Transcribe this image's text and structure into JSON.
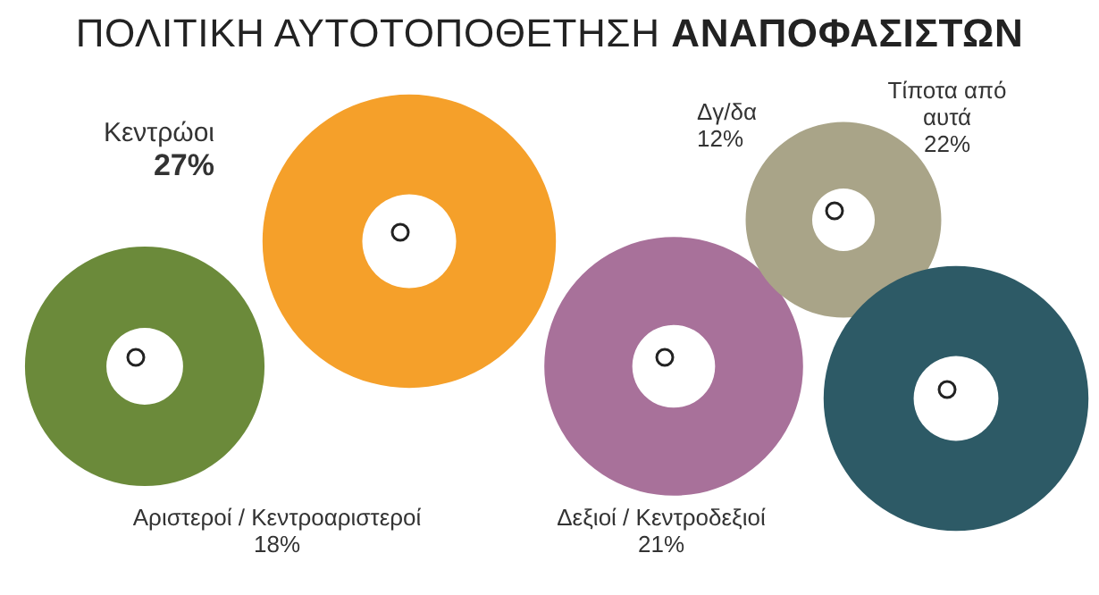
{
  "chart_data": {
    "type": "other",
    "title": "ΠΟΛΙΤΙΚΗ ΑΥΤΟΤΟΠΟΘΕΤΗΣΗ ΑΝΑΠΟΦΑΣΙΣΤΩΝ",
    "categories": [
      "Αριστεροί / Κεντροαριστεροί",
      "Κεντρώοι",
      "Δεξιοί / Κεντροδεξιοί",
      "Δγ/δα",
      "Τίποτα από αυτά"
    ],
    "values": [
      18,
      27,
      21,
      12,
      22
    ],
    "colors": [
      "#6b8a3a",
      "#f5a02a",
      "#a8719a",
      "#a9a488",
      "#2d5a66"
    ],
    "value_labels": [
      "18%",
      "27%",
      "21%",
      "12%",
      "22%"
    ]
  }
}
